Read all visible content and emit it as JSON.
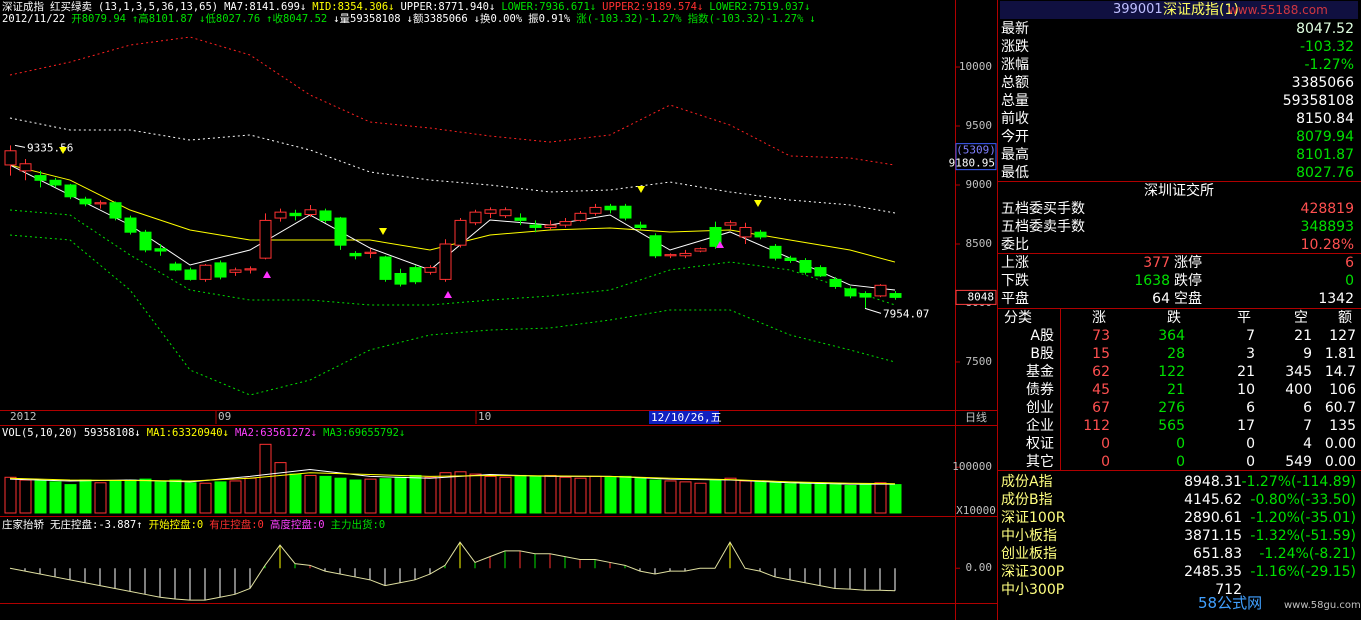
{
  "header": {
    "line1": [
      {
        "text": "深证成指",
        "color": "#ffffff"
      },
      {
        "text": "红买绿卖",
        "color": "#ffffff"
      },
      {
        "text": "(13,1,3,5,36,13,65)",
        "color": "#ffffff"
      },
      {
        "text": "MA7:8141.699↓",
        "color": "#ffffff"
      },
      {
        "text": "MID:8354.306↓",
        "color": "#ffff00"
      },
      {
        "text": "UPPER:8771.940↓",
        "color": "#ffffff"
      },
      {
        "text": "LOWER:7936.671↓",
        "color": "#00e000"
      },
      {
        "text": "UPPER2:9189.574↓",
        "color": "#ff3030"
      },
      {
        "text": "LOWER2:7519.037↓",
        "color": "#00e000"
      }
    ],
    "line2": [
      {
        "text": "2012/11/22",
        "color": "#ffffff"
      },
      {
        "text": "开8079.94",
        "color": "#00e000"
      },
      {
        "text": "↑高8101.87",
        "color": "#00e000"
      },
      {
        "text": "↓低8027.76",
        "color": "#00e000"
      },
      {
        "text": "↑收8047.52",
        "color": "#00e000"
      },
      {
        "text": "↓量59358108",
        "color": "#ffffff"
      },
      {
        "text": "↓额3385066",
        "color": "#ffffff"
      },
      {
        "text": "↓换0.00%",
        "color": "#ffffff"
      },
      {
        "text": "振0.91%",
        "color": "#ffffff"
      },
      {
        "text": "涨(-103.32)-1.27%",
        "color": "#00e000"
      },
      {
        "text": "指数(-103.32)-1.27%",
        "color": "#00e000"
      },
      {
        "text": "↓",
        "color": "#00e000"
      }
    ]
  },
  "chart_data": [
    {
      "type": "candlestick",
      "up_color": "#ff3232",
      "down_color": "#00ff00",
      "open": [
        9170,
        9120,
        9080,
        9040,
        9000,
        8880,
        8840,
        8850,
        8720,
        8600,
        8460,
        8330,
        8280,
        8200,
        8340,
        8260,
        8280,
        8380,
        8720,
        8760,
        8750,
        8780,
        8720,
        8420,
        8420,
        8390,
        8250,
        8300,
        8260,
        8200,
        8490,
        8680,
        8760,
        8740,
        8720,
        8660,
        8640,
        8660,
        8700,
        8760,
        8820,
        8820,
        8660,
        8570,
        8400,
        8400,
        8440,
        8640,
        8660,
        8560,
        8600,
        8480,
        8380,
        8360,
        8300,
        8200,
        8120,
        8080,
        8060,
        8079.94
      ],
      "high": [
        9335.56,
        9220,
        9120,
        9060,
        9010,
        8900,
        8870,
        8860,
        8740,
        8620,
        8500,
        8350,
        8300,
        8330,
        8360,
        8300,
        8310,
        8760,
        8800,
        8790,
        8830,
        8800,
        8730,
        8440,
        8460,
        8400,
        8290,
        8320,
        8320,
        8540,
        8720,
        8790,
        8810,
        8810,
        8760,
        8700,
        8700,
        8720,
        8780,
        8840,
        8840,
        8840,
        8690,
        8590,
        8420,
        8450,
        8470,
        8690,
        8700,
        8680,
        8620,
        8500,
        8400,
        8380,
        8320,
        8220,
        8140,
        8100,
        8160,
        8101.87
      ],
      "low": [
        9080,
        9040,
        8980,
        8980,
        8880,
        8820,
        8800,
        8700,
        8580,
        8430,
        8400,
        8270,
        8190,
        8180,
        8200,
        8230,
        8250,
        8370,
        8690,
        8700,
        8730,
        8680,
        8450,
        8370,
        8380,
        8180,
        8140,
        8160,
        8240,
        8180,
        8470,
        8660,
        8720,
        8720,
        8660,
        8600,
        8620,
        8640,
        8690,
        8740,
        8760,
        8700,
        8620,
        8380,
        8380,
        8380,
        8430,
        8460,
        8620,
        8500,
        8540,
        8360,
        8340,
        8240,
        8220,
        8120,
        8040,
        7954.07,
        8050,
        8027.76
      ],
      "close": [
        9290,
        9180,
        9040,
        9000,
        8900,
        8840,
        8850,
        8720,
        8600,
        8450,
        8440,
        8280,
        8200,
        8320,
        8220,
        8280,
        8290,
        8700,
        8770,
        8740,
        8790,
        8700,
        8490,
        8400,
        8430,
        8200,
        8160,
        8180,
        8300,
        8500,
        8700,
        8770,
        8790,
        8790,
        8700,
        8640,
        8660,
        8690,
        8760,
        8810,
        8790,
        8720,
        8640,
        8400,
        8410,
        8420,
        8460,
        8480,
        8680,
        8640,
        8560,
        8380,
        8360,
        8260,
        8230,
        8140,
        8060,
        8050,
        8150,
        8047.52
      ],
      "line_x": [
        0,
        4,
        8,
        12,
        16,
        20,
        24,
        28,
        32,
        36,
        40,
        44,
        48,
        52,
        56,
        59
      ],
      "series": [
        {
          "color": "#ff2020",
          "dash": "2,3",
          "values": [
            9932,
            10042,
            10186,
            10254,
            10102,
            9763,
            9534,
            9483,
            9415,
            9364,
            9424,
            9678,
            9508,
            9246,
            9229,
            9169
          ]
        },
        {
          "color": "#ffffff",
          "dash": "2,3",
          "values": [
            9568,
            9466,
            9466,
            9381,
            9424,
            9297,
            9110,
            9042,
            9000,
            8941,
            8958,
            9025,
            8941,
            8873,
            8831,
            8763
          ]
        },
        {
          "color": "#ffff00",
          "dash": "",
          "values": [
            9169,
            9042,
            8788,
            8619,
            8534,
            8534,
            8534,
            8449,
            8576,
            8619,
            8636,
            8602,
            8619,
            8534,
            8449,
            8347
          ]
        },
        {
          "color": "#ffffff",
          "dash": "",
          "values": [
            9169,
            8915,
            8661,
            8322,
            8449,
            8746,
            8466,
            8280,
            8703,
            8661,
            8746,
            8449,
            8602,
            8381,
            8153,
            8110
          ]
        },
        {
          "color": "#00e000",
          "dash": "2,3",
          "values": [
            8788,
            8746,
            8407,
            8110,
            8025,
            8025,
            7983,
            7983,
            8025,
            8059,
            8110,
            8280,
            8347,
            8280,
            8110,
            7983
          ]
        },
        {
          "color": "#00e000",
          "dash": "2,3",
          "values": [
            8576,
            8534,
            8110,
            7432,
            7220,
            7347,
            7602,
            7729,
            7771,
            7788,
            7856,
            7941,
            7941,
            7729,
            7602,
            7500
          ]
        }
      ],
      "ylim": [
        7093,
        10568
      ],
      "yticks": [
        7500,
        8000,
        8500,
        9000,
        9500,
        10000
      ],
      "date_labels": [
        "2012",
        "09",
        "10"
      ],
      "cursor_date": "12/10/26,五",
      "period": "日线",
      "cursor_index": "(5309)",
      "cursor_value": 9180.95,
      "last_tag_label": "8048"
    },
    {
      "type": "volume",
      "header": [
        {
          "text": "VOL(5,10,20)",
          "color": "#ffffff"
        },
        {
          "text": "59358108↓",
          "color": "#ffffff"
        },
        {
          "text": "MA1:63320940↓",
          "color": "#ffff00"
        },
        {
          "text": "MA2:63561272↓",
          "color": "#ff40ff"
        },
        {
          "text": "MA3:69655792↓",
          "color": "#00e000"
        }
      ],
      "values": [
        78000,
        72000,
        70000,
        68000,
        62000,
        72000,
        66000,
        70000,
        72000,
        74000,
        68000,
        72000,
        66000,
        65000,
        68000,
        70000,
        76000,
        150000,
        110000,
        85000,
        82000,
        80000,
        76000,
        72000,
        74000,
        75000,
        78000,
        82000,
        78000,
        88000,
        90000,
        85000,
        80000,
        78000,
        82000,
        80000,
        82000,
        78000,
        76000,
        80000,
        78000,
        80000,
        76000,
        72000,
        70000,
        68000,
        65000,
        72000,
        76000,
        70000,
        68000,
        66000,
        64000,
        66000,
        64000,
        62000,
        60000,
        62000,
        66000,
        62000
      ],
      "line_x": [
        0,
        4,
        8,
        12,
        16,
        20,
        24,
        28,
        32,
        36,
        40,
        44,
        48,
        52,
        56,
        59
      ],
      "series": [
        {
          "color": "#ffffff",
          "values": [
            74000,
            70000,
            72000,
            68000,
            80000,
            95000,
            80000,
            76000,
            84000,
            80000,
            80000,
            74000,
            72000,
            66000,
            63000,
            63000
          ]
        },
        {
          "color": "#ffff00",
          "values": [
            76000,
            72000,
            71000,
            70000,
            76000,
            88000,
            84000,
            80000,
            82000,
            81000,
            80000,
            76000,
            73000,
            68000,
            65000,
            64000
          ]
        }
      ],
      "ylim": [
        0,
        190000
      ],
      "yticks": [
        100000
      ],
      "unit_label": "X10000"
    },
    {
      "type": "indicator",
      "header": [
        {
          "text": "庄家抬轿",
          "color": "#ffffff"
        },
        {
          "text": "无庄控盘:-3.887↑",
          "color": "#ffffff"
        },
        {
          "text": "开始控盘:0",
          "color": "#ffff00"
        },
        {
          "text": "有庄控盘:0",
          "color": "#ff3030"
        },
        {
          "text": "高度控盘:0",
          "color": "#ff40ff"
        },
        {
          "text": "主力出货:0",
          "color": "#00e000"
        }
      ],
      "values": [
        0,
        -0.5,
        -1,
        -1.5,
        -2,
        -2.5,
        -3,
        -3.5,
        -4,
        -4.5,
        -5,
        -5.3,
        -5.5,
        -5.5,
        -5,
        -4.5,
        -3.5,
        0.5,
        4,
        0.8,
        0.5,
        -0.5,
        -1,
        -1.5,
        -2,
        -3,
        -2.5,
        -2,
        -1,
        0.5,
        4.5,
        1,
        2,
        3,
        3,
        2.5,
        2.5,
        2,
        1.5,
        1.5,
        1,
        0.5,
        -0.5,
        -1,
        -0.5,
        -0.5,
        0,
        0,
        4.5,
        0,
        -0.5,
        -1.5,
        -2,
        -2.5,
        -3,
        -3.5,
        -3.6,
        -3.8,
        -3.8,
        -3.887
      ],
      "ylim": [
        -6,
        6.6
      ],
      "yticks": [
        {
          "value": 0,
          "label": "0.00"
        }
      ]
    }
  ],
  "side_panel": {
    "code": "399001",
    "name": "深证成指(1)",
    "quote": [
      {
        "label": "最新",
        "value": "8047.52",
        "color": "#e0ffe0"
      },
      {
        "label": "涨跌",
        "value": "-103.32",
        "color": "#00e000"
      },
      {
        "label": "涨幅",
        "value": "-1.27%",
        "color": "#00e000"
      },
      {
        "label": "总额",
        "value": "3385066",
        "color": "#ffffff"
      },
      {
        "label": "总量",
        "value": "59358108",
        "color": "#ffffff"
      },
      {
        "label": "前收",
        "value": "8150.84",
        "color": "#ffffff"
      },
      {
        "label": "今开",
        "value": "8079.94",
        "color": "#00e000"
      },
      {
        "label": "最高",
        "value": "8101.87",
        "color": "#00e000"
      },
      {
        "label": "最低",
        "value": "8027.76",
        "color": "#00e000"
      }
    ],
    "exchange": "深圳证交所",
    "orders": [
      {
        "label": "五档委买手数",
        "value": "428819",
        "color": "#ff5050"
      },
      {
        "label": "五档委卖手数",
        "value": "348893",
        "color": "#00e000"
      },
      {
        "label": "委比",
        "value": "10.28%",
        "color": "#ff5050"
      }
    ],
    "breadth": [
      [
        "上涨",
        "377",
        "涨停",
        "6"
      ],
      [
        "下跌",
        "1638",
        "跌停",
        "0"
      ],
      [
        "平盘",
        "64",
        "空盘",
        "1342"
      ]
    ],
    "table": {
      "header": [
        "分类",
        "涨",
        "跌",
        "平",
        "空",
        "额"
      ],
      "rows": [
        [
          "A股",
          "73",
          "364",
          "7",
          "21",
          "127"
        ],
        [
          "B股",
          "15",
          "28",
          "3",
          "9",
          "1.81"
        ],
        [
          "基金",
          "62",
          "122",
          "21",
          "345",
          "14.7"
        ],
        [
          "债券",
          "45",
          "21",
          "10",
          "400",
          "106"
        ],
        [
          "创业",
          "67",
          "276",
          "6",
          "6",
          "60.7"
        ],
        [
          "企业",
          "112",
          "565",
          "17",
          "7",
          "135"
        ],
        [
          "权证",
          "0",
          "0",
          "0",
          "4",
          "0.00"
        ],
        [
          "其它",
          "0",
          "0",
          "0",
          "549",
          "0.00"
        ]
      ]
    },
    "indices": [
      [
        "成份A指",
        "8948.31",
        "-1.27%(-114.89)"
      ],
      [
        "成份B指",
        "4145.62",
        "-0.80%(-33.50)"
      ],
      [
        "深证100R",
        "2890.61",
        "-1.20%(-35.01)"
      ],
      [
        "中小板指",
        "3871.15",
        "-1.32%(-51.59)"
      ],
      [
        "创业板指",
        "651.83",
        "-1.24%(-8.21)"
      ],
      [
        "深证300P",
        "2485.35",
        "-1.16%(-29.15)"
      ],
      [
        "中小300P",
        "712",
        ""
      ]
    ]
  },
  "watermarks": [
    "www.55188.com",
    "58公式网",
    "www.58gu.com"
  ]
}
